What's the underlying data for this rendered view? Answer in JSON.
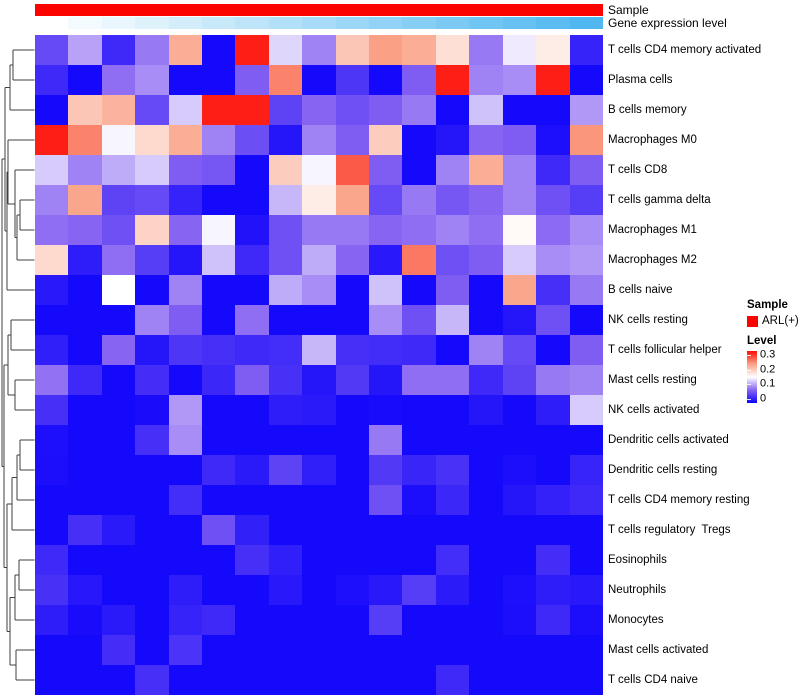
{
  "annotations": {
    "sample": {
      "label": "Sample",
      "color": "#FB0400",
      "value": "ARL(+)"
    },
    "gene_expression": {
      "label": "Gene expression level",
      "start_color": "#FFFFFF",
      "end_color": "#50B7F0",
      "column_values": [
        0,
        0.0625,
        0.125,
        0.1875,
        0.25,
        0.3125,
        0.375,
        0.4375,
        0.5,
        0.5625,
        0.625,
        0.6875,
        0.75,
        0.8125,
        0.875,
        0.9375,
        1
      ]
    }
  },
  "legend": {
    "sample_title": "Sample",
    "sample_items": [
      {
        "label": "ARL(+)",
        "color": "#FB0400"
      }
    ],
    "level_title": "Level",
    "level_ticks": [
      "0.3",
      "0.2",
      "0.1",
      "0"
    ],
    "level_range": [
      0,
      0.3
    ]
  },
  "chart_data": {
    "type": "heatmap",
    "title": "",
    "n_columns": 17,
    "column_labels_shown": false,
    "value_range": [
      0,
      0.3
    ],
    "colormap": {
      "low": "#0D02FC",
      "mid": "#FFFFFF",
      "high": "#FD0A05",
      "mid_value": 0.15
    },
    "row_dendrogram": true,
    "legend_position": "right",
    "rows": [
      "T cells CD4 memory activated",
      "Plasma cells",
      "B cells memory",
      "Macrophages M0",
      "T cells CD8",
      "T cells gamma delta",
      "Macrophages M1",
      "Macrophages M2",
      "B cells naive",
      "NK cells resting",
      "T cells follicular helper",
      "Mast cells resting",
      "NK cells activated",
      "Dendritic cells activated",
      "Dendritic cells resting",
      "T cells CD4 memory resting",
      "T cells regulatory  Tregs",
      "Eosinophils",
      "Neutrophils",
      "Monocytes",
      "Mast cells activated",
      "T cells CD4 naive"
    ],
    "values": [
      [
        0.055,
        0.105,
        0.03,
        0.085,
        0.215,
        0.005,
        0.29,
        0.13,
        0.09,
        0.195,
        0.225,
        0.215,
        0.175,
        0.085,
        0.14,
        0.165,
        0.025
      ],
      [
        0.03,
        0.005,
        0.08,
        0.095,
        0.005,
        0.005,
        0.07,
        0.24,
        0.005,
        0.04,
        0.005,
        0.07,
        0.29,
        0.09,
        0.095,
        0.29,
        0.005
      ],
      [
        0.005,
        0.195,
        0.21,
        0.055,
        0.125,
        0.29,
        0.29,
        0.05,
        0.075,
        0.06,
        0.07,
        0.085,
        0.005,
        0.12,
        0.005,
        0.005,
        0.1
      ],
      [
        0.29,
        0.24,
        0.145,
        0.18,
        0.215,
        0.09,
        0.058,
        0.015,
        0.09,
        0.07,
        0.19,
        0.005,
        0.015,
        0.075,
        0.07,
        0.01,
        0.23
      ],
      [
        0.125,
        0.09,
        0.11,
        0.125,
        0.07,
        0.065,
        0.005,
        0.19,
        0.145,
        0.26,
        0.07,
        0.005,
        0.09,
        0.215,
        0.09,
        0.03,
        0.07
      ],
      [
        0.09,
        0.22,
        0.05,
        0.055,
        0.025,
        0.005,
        0.005,
        0.115,
        0.165,
        0.22,
        0.055,
        0.085,
        0.065,
        0.075,
        0.09,
        0.06,
        0.045
      ],
      [
        0.08,
        0.075,
        0.06,
        0.185,
        0.075,
        0.145,
        0.012,
        0.06,
        0.085,
        0.085,
        0.075,
        0.08,
        0.09,
        0.08,
        0.155,
        0.078,
        0.095
      ],
      [
        0.18,
        0.02,
        0.08,
        0.045,
        0.015,
        0.12,
        0.03,
        0.06,
        0.11,
        0.075,
        0.017,
        0.245,
        0.06,
        0.07,
        0.125,
        0.095,
        0.1
      ],
      [
        0.017,
        0.005,
        0.15,
        0.005,
        0.09,
        0.005,
        0.005,
        0.11,
        0.095,
        0.005,
        0.12,
        0.005,
        0.07,
        0.005,
        0.22,
        0.035,
        0.085
      ],
      [
        0.005,
        0.005,
        0.005,
        0.09,
        0.07,
        0.005,
        0.08,
        0.005,
        0.005,
        0.005,
        0.095,
        0.06,
        0.115,
        0.005,
        0.015,
        0.06,
        0.005
      ],
      [
        0.022,
        0.005,
        0.075,
        0.015,
        0.04,
        0.035,
        0.03,
        0.033,
        0.115,
        0.035,
        0.032,
        0.03,
        0.005,
        0.09,
        0.055,
        0.005,
        0.07
      ],
      [
        0.082,
        0.03,
        0.005,
        0.034,
        0.005,
        0.028,
        0.07,
        0.036,
        0.015,
        0.042,
        0.015,
        0.08,
        0.08,
        0.03,
        0.05,
        0.085,
        0.09
      ],
      [
        0.035,
        0.005,
        0.005,
        0.008,
        0.1,
        0.005,
        0.005,
        0.02,
        0.018,
        0.005,
        0.007,
        0.005,
        0.005,
        0.015,
        0.005,
        0.02,
        0.125
      ],
      [
        0.01,
        0.005,
        0.005,
        0.035,
        0.095,
        0.005,
        0.005,
        0.005,
        0.005,
        0.005,
        0.085,
        0.005,
        0.005,
        0.005,
        0.005,
        0.005,
        0.005
      ],
      [
        0.009,
        0.005,
        0.005,
        0.005,
        0.005,
        0.03,
        0.018,
        0.05,
        0.022,
        0.005,
        0.042,
        0.027,
        0.037,
        0.005,
        0.009,
        0.005,
        0.026
      ],
      [
        0.005,
        0.005,
        0.005,
        0.005,
        0.033,
        0.005,
        0.005,
        0.005,
        0.005,
        0.005,
        0.06,
        0.009,
        0.028,
        0.005,
        0.015,
        0.024,
        0.03
      ],
      [
        0.005,
        0.035,
        0.018,
        0.005,
        0.005,
        0.06,
        0.023,
        0.005,
        0.005,
        0.005,
        0.005,
        0.005,
        0.005,
        0.005,
        0.005,
        0.005,
        0.005
      ],
      [
        0.03,
        0.005,
        0.005,
        0.005,
        0.005,
        0.005,
        0.035,
        0.022,
        0.005,
        0.005,
        0.005,
        0.005,
        0.033,
        0.005,
        0.005,
        0.034,
        0.005
      ],
      [
        0.036,
        0.016,
        0.005,
        0.005,
        0.02,
        0.005,
        0.005,
        0.017,
        0.005,
        0.01,
        0.017,
        0.045,
        0.019,
        0.005,
        0.01,
        0.021,
        0.017
      ],
      [
        0.02,
        0.008,
        0.018,
        0.005,
        0.025,
        0.03,
        0.005,
        0.005,
        0.005,
        0.005,
        0.045,
        0.005,
        0.005,
        0.005,
        0.009,
        0.03,
        0.009
      ],
      [
        0.005,
        0.005,
        0.034,
        0.005,
        0.038,
        0.005,
        0.005,
        0.005,
        0.005,
        0.005,
        0.005,
        0.005,
        0.005,
        0.005,
        0.005,
        0.005,
        0.005
      ],
      [
        0.005,
        0.005,
        0.005,
        0.035,
        0.005,
        0.005,
        0.005,
        0.005,
        0.005,
        0.005,
        0.005,
        0.005,
        0.03,
        0.005,
        0.005,
        0.005,
        0.005
      ]
    ]
  },
  "dendrogram": {
    "merges": [
      [
        "L1",
        "L2",
        13
      ],
      [
        "M1",
        "L3",
        10
      ],
      [
        "L6",
        "L7",
        20
      ],
      [
        "M3",
        "L8",
        17
      ],
      [
        "L5",
        "M4",
        15
      ],
      [
        "L4",
        "M5",
        8
      ],
      [
        "M6",
        "L9",
        7
      ],
      [
        "M2",
        "M7",
        5
      ],
      [
        "L10",
        "L11",
        11
      ],
      [
        "L12",
        "L13",
        15
      ],
      [
        "M9",
        "M10",
        8
      ],
      [
        "L14",
        "L15",
        20
      ],
      [
        "M12",
        "L16",
        17
      ],
      [
        "M13",
        "L17",
        12
      ],
      [
        "L18",
        "L19",
        19
      ],
      [
        "M15",
        "L20",
        15
      ],
      [
        "L21",
        "L22",
        16
      ],
      [
        "M16",
        "M17",
        10
      ],
      [
        "M14",
        "M18",
        7
      ],
      [
        "M11",
        "M19",
        4
      ],
      [
        "M8",
        "M20",
        2
      ]
    ]
  }
}
